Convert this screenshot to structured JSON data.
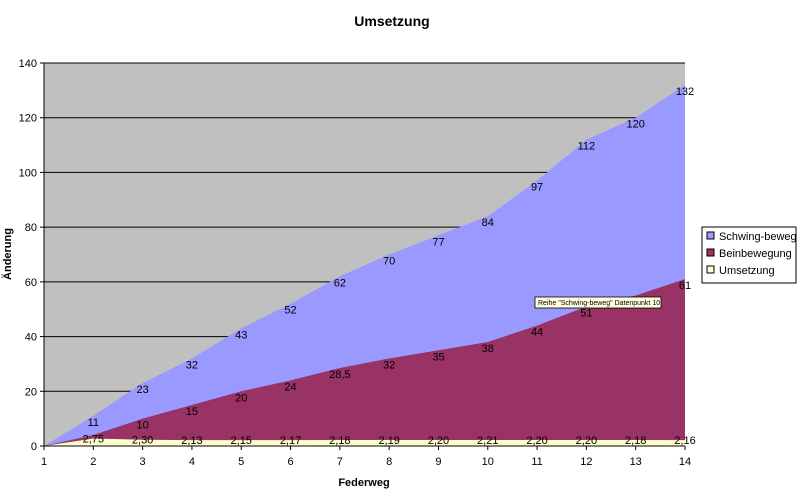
{
  "chart_data": {
    "type": "area",
    "title": "Umsetzung",
    "xlabel": "Federweg",
    "ylabel": "Änderung",
    "x": [
      1,
      2,
      3,
      4,
      5,
      6,
      7,
      8,
      9,
      10,
      11,
      12,
      13,
      14
    ],
    "ylim": [
      0,
      140
    ],
    "yticks": [
      0,
      20,
      40,
      60,
      80,
      100,
      120,
      140
    ],
    "grid": true,
    "legend_position": "right",
    "series": [
      {
        "name": "Schwing-beweg",
        "color": "#9999ff",
        "values": [
          0,
          11,
          23,
          32,
          43,
          52,
          62,
          70,
          77,
          84,
          97,
          112,
          120,
          132
        ],
        "labels": [
          "",
          "11",
          "23",
          "32",
          "43",
          "52",
          "62",
          "70",
          "77",
          "84",
          "97",
          "112",
          "120",
          "132"
        ]
      },
      {
        "name": "Beinbewegung",
        "color": "#993366",
        "values": [
          0,
          4,
          10,
          15,
          20,
          24,
          28.5,
          32,
          35,
          38,
          44,
          51,
          55,
          61
        ],
        "labels": [
          "",
          "",
          "10",
          "15",
          "20",
          "24",
          "28,5",
          "32",
          "35",
          "38",
          "44",
          "51",
          "55",
          "61"
        ]
      },
      {
        "name": "Umsetzung",
        "color": "#ffffcc",
        "values": [
          0,
          2.75,
          2.3,
          2.13,
          2.15,
          2.17,
          2.18,
          2.19,
          2.2,
          2.21,
          2.2,
          2.2,
          2.18,
          2.16
        ],
        "labels": [
          "",
          "2,75",
          "2,30",
          "2,13",
          "2,15",
          "2,17",
          "2,18",
          "2,19",
          "2,20",
          "2,21",
          "2,20",
          "2,20",
          "2,18",
          "2,16"
        ]
      }
    ],
    "tooltip": {
      "text": "Reihe \"Schwing-beweg\" Datenpunkt 10",
      "series_index": 0,
      "point_index": 10
    }
  }
}
